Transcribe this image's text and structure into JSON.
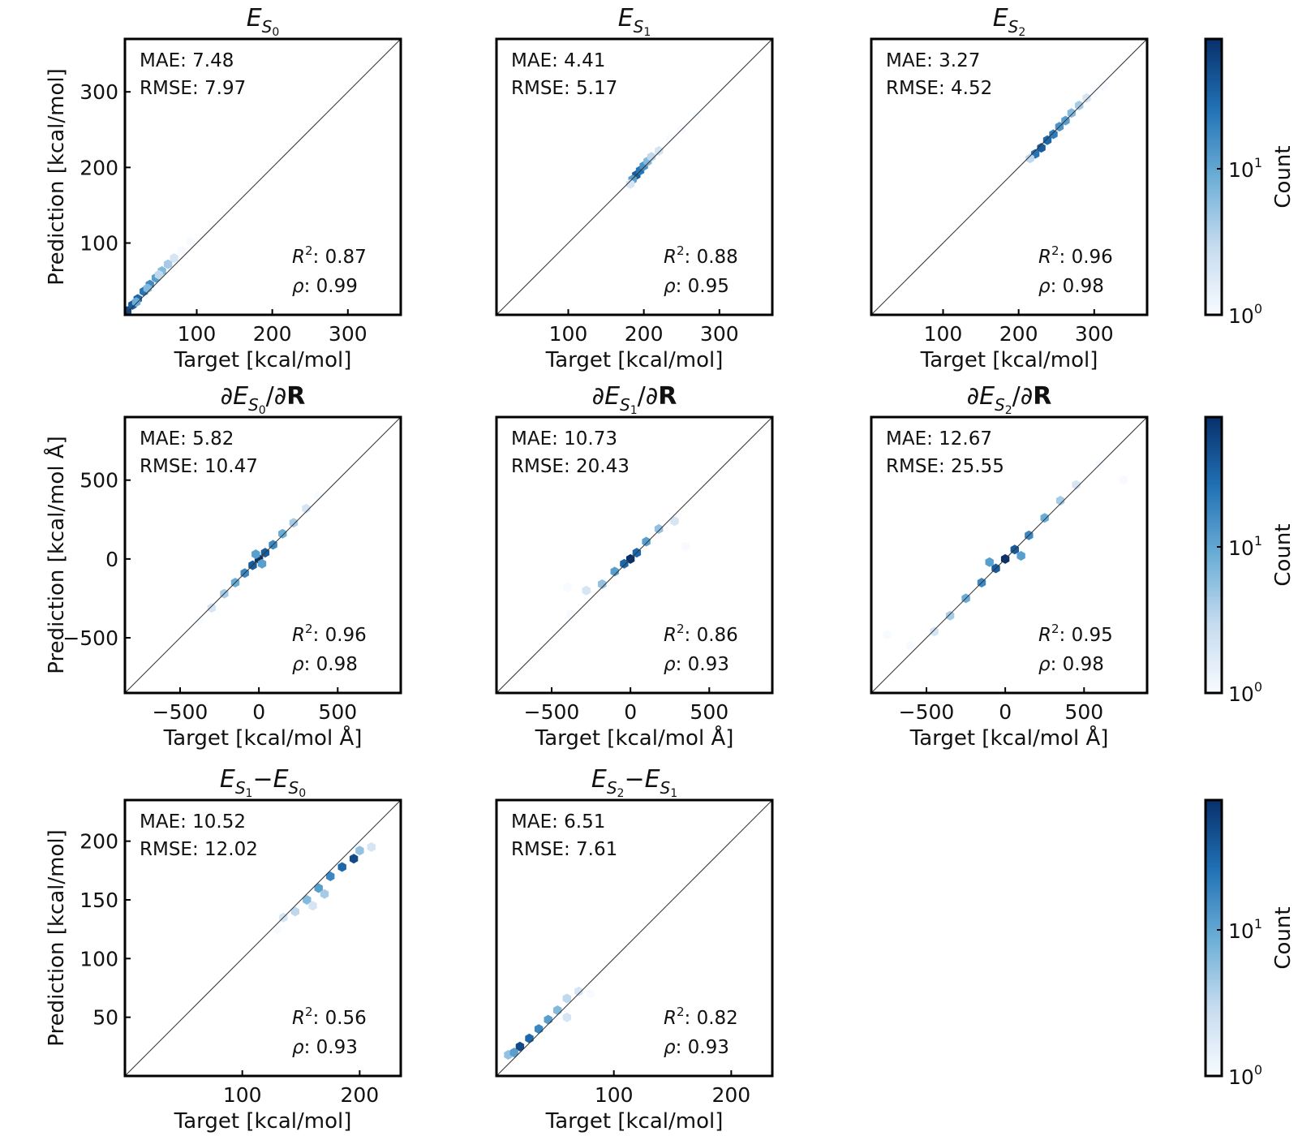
{
  "figure": {
    "colorbar_label": "Count",
    "colorbar_ticks": [
      "10",
      "10"
    ],
    "colorbar_tick_exponents": [
      "0",
      "1"
    ]
  },
  "chart_data": [
    {
      "type": "scatter",
      "subtype": "hexbin",
      "title": {
        "main": "E",
        "sub": "S",
        "subsub": "0"
      },
      "xlabel": "Target [kcal/mol]",
      "ylabel": "Prediction [kcal/mol]",
      "xlim": [
        5,
        370
      ],
      "ylim": [
        5,
        370
      ],
      "xticks": [
        100,
        200,
        300
      ],
      "yticks": [
        100,
        200,
        300
      ],
      "xtick_labels": [
        "100",
        "200",
        "300"
      ],
      "ytick_labels": [
        "100",
        "200",
        "300"
      ],
      "stats": {
        "mae": "MAE: 7.48",
        "rmse": "RMSE: 7.97",
        "r2": ": 0.87",
        "rho": ": 0.99"
      },
      "points": [
        [
          8,
          10,
          40
        ],
        [
          15,
          18,
          30
        ],
        [
          22,
          26,
          25
        ],
        [
          30,
          36,
          20
        ],
        [
          38,
          45,
          14
        ],
        [
          46,
          54,
          10
        ],
        [
          54,
          63,
          6
        ],
        [
          62,
          72,
          4
        ],
        [
          70,
          80,
          2
        ],
        [
          80,
          90,
          1
        ],
        [
          92,
          102,
          1
        ],
        [
          20,
          22,
          8
        ],
        [
          35,
          40,
          6
        ],
        [
          50,
          58,
          3
        ]
      ]
    },
    {
      "type": "scatter",
      "subtype": "hexbin",
      "title": {
        "main": "E",
        "sub": "S",
        "subsub": "1"
      },
      "xlabel": "Target [kcal/mol]",
      "ylabel": "",
      "xlim": [
        5,
        370
      ],
      "ylim": [
        5,
        370
      ],
      "xticks": [
        100,
        200,
        300
      ],
      "yticks": [],
      "xtick_labels": [
        "100",
        "200",
        "300"
      ],
      "ytick_labels": [],
      "stats": {
        "mae": "MAE: 4.41",
        "rmse": "RMSE: 5.17",
        "r2": ": 0.88",
        "rho": ": 0.95"
      },
      "points": [
        [
          190,
          190,
          30
        ],
        [
          195,
          196,
          20
        ],
        [
          200,
          202,
          12
        ],
        [
          185,
          184,
          10
        ],
        [
          205,
          208,
          6
        ],
        [
          210,
          214,
          3
        ],
        [
          220,
          222,
          2
        ],
        [
          235,
          238,
          1
        ],
        [
          250,
          250,
          1
        ],
        [
          270,
          268,
          1
        ],
        [
          182,
          178,
          2
        ]
      ]
    },
    {
      "type": "scatter",
      "subtype": "hexbin",
      "title": {
        "main": "E",
        "sub": "S",
        "subsub": "2"
      },
      "xlabel": "Target [kcal/mol]",
      "ylabel": "",
      "xlim": [
        5,
        370
      ],
      "ylim": [
        5,
        370
      ],
      "xticks": [
        100,
        200,
        300
      ],
      "yticks": [],
      "xtick_labels": [
        "100",
        "200",
        "300"
      ],
      "ytick_labels": [],
      "stats": {
        "mae": "MAE: 3.27",
        "rmse": "RMSE: 4.52",
        "r2": ": 0.96",
        "rho": ": 0.98"
      },
      "points": [
        [
          222,
          218,
          20
        ],
        [
          230,
          226,
          30
        ],
        [
          238,
          236,
          25
        ],
        [
          246,
          244,
          18
        ],
        [
          254,
          254,
          12
        ],
        [
          262,
          262,
          10
        ],
        [
          270,
          272,
          6
        ],
        [
          280,
          282,
          4
        ],
        [
          290,
          292,
          2
        ],
        [
          300,
          300,
          1
        ],
        [
          312,
          308,
          1
        ],
        [
          215,
          212,
          3
        ]
      ]
    },
    {
      "type": "scatter",
      "subtype": "hexbin",
      "title": {
        "main": "∂E",
        "sub": "S",
        "subsub": "0",
        "tail": "/∂",
        "bold": "R"
      },
      "xlabel": "Target [kcal/mol Å]",
      "ylabel": "Prediction [kcal/mol Å]",
      "xlim": [
        -850,
        900
      ],
      "ylim": [
        -850,
        900
      ],
      "xticks": [
        -500,
        0,
        500
      ],
      "yticks": [
        -500,
        0,
        500
      ],
      "xtick_labels": [
        "−500",
        "0",
        "500"
      ],
      "ytick_labels": [
        "−500",
        "0",
        "500"
      ],
      "stats": {
        "mae": "MAE: 5.82",
        "rmse": "RMSE: 10.47",
        "r2": ": 0.96",
        "rho": ": 0.98"
      },
      "points": [
        [
          0,
          0,
          60
        ],
        [
          -40,
          -40,
          30
        ],
        [
          40,
          40,
          30
        ],
        [
          -90,
          -90,
          15
        ],
        [
          90,
          90,
          15
        ],
        [
          -150,
          -150,
          8
        ],
        [
          150,
          160,
          8
        ],
        [
          -220,
          -220,
          4
        ],
        [
          220,
          230,
          4
        ],
        [
          -300,
          -310,
          2
        ],
        [
          300,
          320,
          2
        ],
        [
          -380,
          -390,
          1
        ],
        [
          380,
          400,
          1
        ],
        [
          -20,
          30,
          10
        ],
        [
          20,
          -30,
          10
        ]
      ]
    },
    {
      "type": "scatter",
      "subtype": "hexbin",
      "title": {
        "main": "∂E",
        "sub": "S",
        "subsub": "1",
        "tail": "/∂",
        "bold": "R"
      },
      "xlabel": "Target [kcal/mol Å]",
      "ylabel": "",
      "xlim": [
        -850,
        900
      ],
      "ylim": [
        -850,
        900
      ],
      "xticks": [
        -500,
        0,
        500
      ],
      "yticks": [],
      "xtick_labels": [
        "−500",
        "0",
        "500"
      ],
      "ytick_labels": [],
      "stats": {
        "mae": "MAE: 10.73",
        "rmse": "RMSE: 20.43",
        "r2": ": 0.86",
        "rho": ": 0.93"
      },
      "points": [
        [
          0,
          0,
          60
        ],
        [
          -40,
          -30,
          25
        ],
        [
          40,
          40,
          25
        ],
        [
          -100,
          -80,
          10
        ],
        [
          100,
          110,
          10
        ],
        [
          -180,
          -160,
          5
        ],
        [
          180,
          190,
          5
        ],
        [
          -280,
          -200,
          2
        ],
        [
          280,
          240,
          2
        ],
        [
          -400,
          -180,
          1
        ],
        [
          350,
          80,
          1
        ],
        [
          -380,
          -350,
          1
        ]
      ]
    },
    {
      "type": "scatter",
      "subtype": "hexbin",
      "title": {
        "main": "∂E",
        "sub": "S",
        "subsub": "2",
        "tail": "/∂",
        "bold": "R"
      },
      "xlabel": "Target [kcal/mol Å]",
      "ylabel": "",
      "xlim": [
        -850,
        900
      ],
      "ylim": [
        -850,
        900
      ],
      "xticks": [
        -500,
        0,
        500
      ],
      "yticks": [],
      "xtick_labels": [
        "−500",
        "0",
        "500"
      ],
      "ytick_labels": [],
      "stats": {
        "mae": "MAE: 12.67",
        "rmse": "RMSE: 25.55",
        "r2": ": 0.95",
        "rho": ": 0.98"
      },
      "points": [
        [
          0,
          0,
          60
        ],
        [
          -60,
          -60,
          30
        ],
        [
          60,
          60,
          30
        ],
        [
          -150,
          -150,
          15
        ],
        [
          150,
          150,
          15
        ],
        [
          -250,
          -250,
          8
        ],
        [
          250,
          260,
          8
        ],
        [
          -350,
          -360,
          4
        ],
        [
          350,
          370,
          4
        ],
        [
          -450,
          -460,
          2
        ],
        [
          450,
          470,
          2
        ],
        [
          -600,
          -550,
          1
        ],
        [
          600,
          600,
          1
        ],
        [
          750,
          500,
          1
        ],
        [
          -750,
          -480,
          1
        ],
        [
          -100,
          -20,
          10
        ],
        [
          100,
          20,
          10
        ]
      ]
    },
    {
      "type": "scatter",
      "subtype": "hexbin",
      "title": {
        "main": "E",
        "sub": "S",
        "subsub": "1",
        "minus": "−E",
        "sub2": "S",
        "subsub2": "0"
      },
      "xlabel": "Target [kcal/mol]",
      "ylabel": "Prediction [kcal/mol]",
      "xlim": [
        0,
        235
      ],
      "ylim": [
        0,
        235
      ],
      "xticks": [
        100,
        200
      ],
      "yticks": [
        50,
        100,
        150,
        200
      ],
      "xtick_labels": [
        "100",
        "200"
      ],
      "ytick_labels": [
        "50",
        "100",
        "150",
        "200"
      ],
      "stats": {
        "mae": "MAE: 10.52",
        "rmse": "RMSE: 12.02",
        "r2": ": 0.56",
        "rho": ": 0.93"
      },
      "points": [
        [
          195,
          185,
          40
        ],
        [
          185,
          178,
          25
        ],
        [
          175,
          170,
          15
        ],
        [
          165,
          160,
          10
        ],
        [
          155,
          150,
          6
        ],
        [
          145,
          140,
          3
        ],
        [
          135,
          135,
          2
        ],
        [
          130,
          125,
          1
        ],
        [
          210,
          195,
          2
        ],
        [
          200,
          192,
          5
        ],
        [
          170,
          155,
          4
        ],
        [
          160,
          145,
          2
        ]
      ]
    },
    {
      "type": "scatter",
      "subtype": "hexbin",
      "title": {
        "main": "E",
        "sub": "S",
        "subsub": "2",
        "minus": "−E",
        "sub2": "S",
        "subsub2": "1"
      },
      "xlabel": "Target [kcal/mol]",
      "ylabel": "",
      "xlim": [
        0,
        235
      ],
      "ylim": [
        0,
        235
      ],
      "xticks": [
        100,
        200
      ],
      "yticks": [],
      "xtick_labels": [
        "100",
        "200"
      ],
      "ytick_labels": [],
      "stats": {
        "mae": "MAE: 6.51",
        "rmse": "RMSE: 7.61",
        "r2": ": 0.82",
        "rho": ": 0.93"
      },
      "points": [
        [
          20,
          25,
          40
        ],
        [
          28,
          32,
          25
        ],
        [
          36,
          40,
          15
        ],
        [
          44,
          48,
          10
        ],
        [
          52,
          56,
          6
        ],
        [
          60,
          66,
          3
        ],
        [
          70,
          72,
          2
        ],
        [
          80,
          70,
          1
        ],
        [
          10,
          18,
          5
        ],
        [
          15,
          20,
          10
        ],
        [
          60,
          50,
          2
        ]
      ]
    }
  ]
}
